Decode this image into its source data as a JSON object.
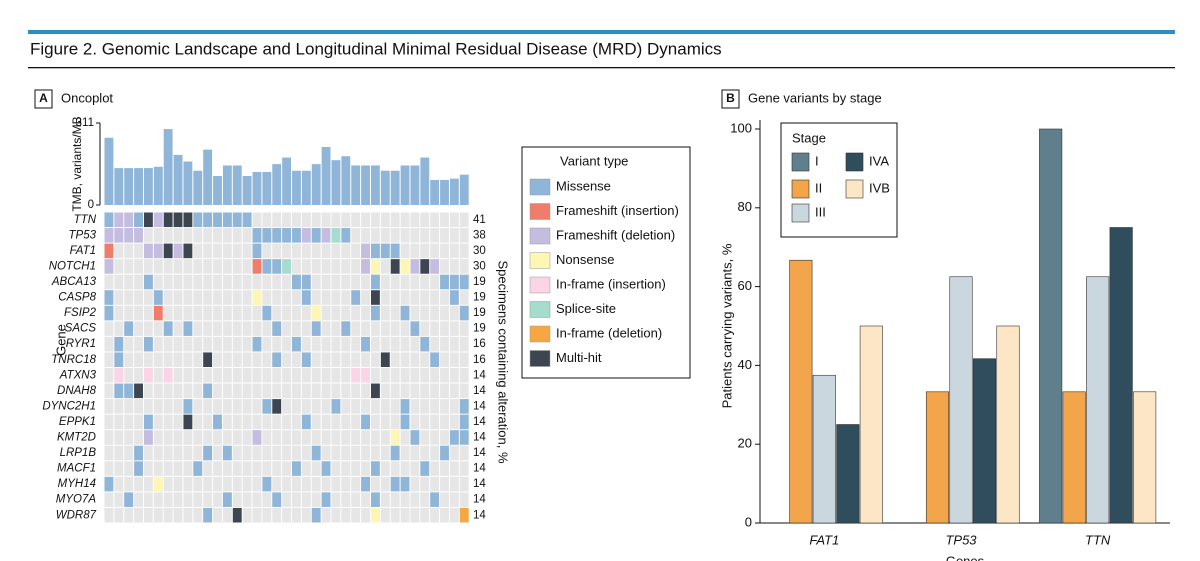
{
  "title": "Figure 2. Genomic Landscape and Longitudinal Minimal Residual Disease (MRD) Dynamics",
  "chart_data": [
    {
      "type": "oncoplot",
      "panel": "A",
      "title": "Oncoplot",
      "ylabel": "TMB, variants/MB",
      "ylim": [
        0,
        311
      ],
      "yticks": [
        0,
        311
      ],
      "color": "#8fb6d8",
      "tmb": [
        255,
        140,
        140,
        140,
        140,
        145,
        288,
        190,
        165,
        130,
        210,
        110,
        150,
        150,
        110,
        125,
        125,
        155,
        180,
        130,
        130,
        155,
        220,
        170,
        185,
        150,
        150,
        150,
        130,
        130,
        150,
        150,
        180,
        95,
        95,
        100,
        115
      ],
      "gene_label": "Gene",
      "percent_label": "Specimens containing alteration, %",
      "genes": [
        "TTN",
        "TP53",
        "FAT1",
        "NOTCH1",
        "ABCA13",
        "CASP8",
        "FSIP2",
        "SACS",
        "RYR1",
        "TNRC18",
        "ATXN3",
        "DNAH8",
        "DYNC2H1",
        "EPPK1",
        "KMT2D",
        "LRP1B",
        "MACF1",
        "MYH14",
        "MYO7A",
        "WDR87"
      ],
      "percent": [
        41,
        38,
        30,
        30,
        19,
        19,
        19,
        19,
        16,
        16,
        14,
        14,
        14,
        14,
        14,
        14,
        14,
        14,
        14,
        14
      ],
      "legend_title": "Variant type",
      "variant_types": [
        {
          "name": "Missense",
          "color": "#8fb6d8"
        },
        {
          "name": "Frameshift (insertion)",
          "color": "#f07c6c"
        },
        {
          "name": "Frameshift (deletion)",
          "color": "#c5bde0"
        },
        {
          "name": "Nonsense",
          "color": "#fdf6b4"
        },
        {
          "name": "In-frame (insertion)",
          "color": "#fbd5e6"
        },
        {
          "name": "Splice-site",
          "color": "#a5dccd"
        },
        {
          "name": "In-frame (deletion)",
          "color": "#f5a742"
        },
        {
          "name": "Multi-hit",
          "color": "#3d4650"
        }
      ],
      "alterations": [
        [
          [
            0,
            0
          ],
          [
            1,
            2
          ],
          [
            2,
            2
          ],
          [
            3,
            0
          ],
          [
            4,
            7
          ],
          [
            5,
            2
          ],
          [
            6,
            7
          ],
          [
            7,
            7
          ],
          [
            8,
            7
          ],
          [
            9,
            0
          ],
          [
            10,
            0
          ],
          [
            11,
            0
          ],
          [
            12,
            0
          ],
          [
            13,
            0
          ],
          [
            14,
            0
          ]
        ],
        [
          [
            0,
            2
          ],
          [
            1,
            2
          ],
          [
            2,
            2
          ],
          [
            3,
            2
          ],
          [
            15,
            0
          ],
          [
            16,
            0
          ],
          [
            17,
            0
          ],
          [
            18,
            0
          ],
          [
            19,
            0
          ],
          [
            20,
            2
          ],
          [
            21,
            0
          ],
          [
            22,
            2
          ],
          [
            23,
            5
          ],
          [
            24,
            0
          ]
        ],
        [
          [
            0,
            1
          ],
          [
            4,
            2
          ],
          [
            5,
            2
          ],
          [
            6,
            7
          ],
          [
            7,
            2
          ],
          [
            8,
            7
          ],
          [
            15,
            0
          ],
          [
            26,
            2
          ],
          [
            27,
            0
          ],
          [
            28,
            0
          ],
          [
            29,
            0
          ]
        ],
        [
          [
            0,
            2
          ],
          [
            15,
            1
          ],
          [
            16,
            0
          ],
          [
            17,
            0
          ],
          [
            18,
            5
          ],
          [
            26,
            2
          ],
          [
            27,
            3
          ],
          [
            29,
            7
          ],
          [
            30,
            3
          ],
          [
            31,
            2
          ],
          [
            32,
            7
          ],
          [
            33,
            2
          ]
        ],
        [
          [
            4,
            0
          ],
          [
            19,
            0
          ],
          [
            20,
            0
          ],
          [
            27,
            0
          ],
          [
            34,
            0
          ],
          [
            35,
            0
          ],
          [
            36,
            0
          ]
        ],
        [
          [
            0,
            0
          ],
          [
            5,
            0
          ],
          [
            15,
            3
          ],
          [
            20,
            0
          ],
          [
            25,
            0
          ],
          [
            27,
            7
          ],
          [
            35,
            0
          ]
        ],
        [
          [
            0,
            0
          ],
          [
            5,
            1
          ],
          [
            16,
            0
          ],
          [
            21,
            3
          ],
          [
            27,
            0
          ],
          [
            30,
            0
          ],
          [
            36,
            0
          ]
        ],
        [
          [
            2,
            0
          ],
          [
            6,
            0
          ],
          [
            8,
            0
          ],
          [
            17,
            0
          ],
          [
            21,
            0
          ],
          [
            24,
            0
          ],
          [
            31,
            0
          ]
        ],
        [
          [
            1,
            0
          ],
          [
            4,
            0
          ],
          [
            15,
            0
          ],
          [
            19,
            0
          ],
          [
            26,
            0
          ],
          [
            32,
            0
          ]
        ],
        [
          [
            1,
            0
          ],
          [
            10,
            7
          ],
          [
            17,
            0
          ],
          [
            20,
            0
          ],
          [
            28,
            7
          ],
          [
            33,
            0
          ]
        ],
        [
          [
            1,
            4
          ],
          [
            4,
            4
          ],
          [
            6,
            4
          ],
          [
            25,
            4
          ],
          [
            26,
            4
          ]
        ],
        [
          [
            1,
            0
          ],
          [
            2,
            0
          ],
          [
            3,
            7
          ],
          [
            10,
            0
          ],
          [
            27,
            7
          ]
        ],
        [
          [
            8,
            0
          ],
          [
            16,
            0
          ],
          [
            17,
            7
          ],
          [
            23,
            0
          ],
          [
            30,
            0
          ],
          [
            36,
            0
          ]
        ],
        [
          [
            4,
            0
          ],
          [
            8,
            7
          ],
          [
            11,
            0
          ],
          [
            20,
            0
          ],
          [
            26,
            0
          ],
          [
            30,
            0
          ],
          [
            36,
            0
          ]
        ],
        [
          [
            4,
            2
          ],
          [
            15,
            2
          ],
          [
            29,
            3
          ],
          [
            31,
            0
          ],
          [
            35,
            0
          ],
          [
            36,
            0
          ]
        ],
        [
          [
            3,
            0
          ],
          [
            10,
            0
          ],
          [
            12,
            0
          ],
          [
            21,
            0
          ],
          [
            29,
            0
          ],
          [
            34,
            0
          ]
        ],
        [
          [
            3,
            0
          ],
          [
            9,
            0
          ],
          [
            19,
            0
          ],
          [
            22,
            0
          ],
          [
            27,
            0
          ],
          [
            32,
            0
          ]
        ],
        [
          [
            0,
            0
          ],
          [
            5,
            3
          ],
          [
            16,
            0
          ],
          [
            26,
            0
          ],
          [
            29,
            0
          ],
          [
            30,
            0
          ]
        ],
        [
          [
            2,
            0
          ],
          [
            12,
            0
          ],
          [
            17,
            0
          ],
          [
            22,
            0
          ],
          [
            27,
            0
          ],
          [
            33,
            0
          ]
        ],
        [
          [
            10,
            0
          ],
          [
            13,
            7
          ],
          [
            21,
            0
          ],
          [
            27,
            3
          ],
          [
            36,
            6
          ]
        ]
      ]
    },
    {
      "type": "bar",
      "panel": "B",
      "title": "Gene variants by stage",
      "xlabel": "Genes",
      "ylabel": "Patients carrying variants, %",
      "categories": [
        "FAT1",
        "TP53",
        "TTN"
      ],
      "ylim": [
        0,
        100
      ],
      "yticks": [
        0,
        20,
        40,
        60,
        80,
        100
      ],
      "grid": false,
      "legend_title": "Stage",
      "series": [
        {
          "name": "I",
          "color": "#5f7f8d",
          "values": [
            0,
            0,
            100
          ]
        },
        {
          "name": "II",
          "color": "#f2a54a",
          "values": [
            66.7,
            33.3,
            33.3
          ]
        },
        {
          "name": "III",
          "color": "#cbd7de",
          "values": [
            37.5,
            62.5,
            62.5
          ]
        },
        {
          "name": "IVA",
          "color": "#2f4d5c",
          "values": [
            25,
            41.7,
            75
          ]
        },
        {
          "name": "IVB",
          "color": "#fde6c6",
          "values": [
            50,
            50,
            33.3
          ]
        }
      ]
    }
  ]
}
